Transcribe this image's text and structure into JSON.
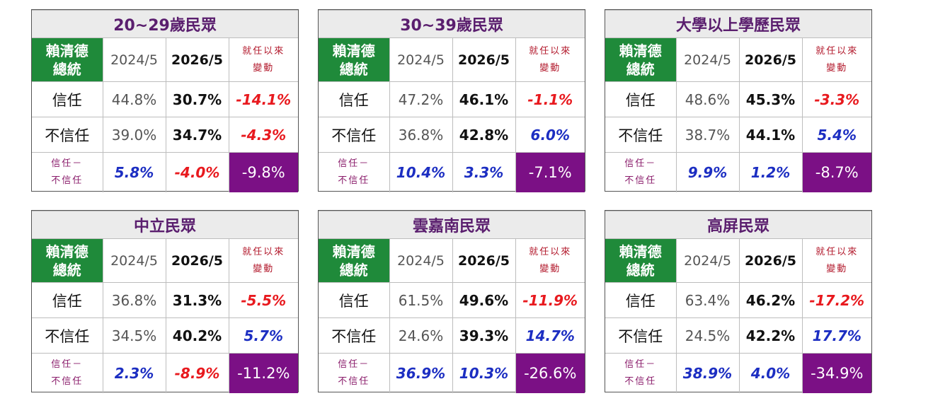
{
  "labels": {
    "name": [
      "賴清德",
      "總統"
    ],
    "old_period": "2024/5",
    "new_period": "2026/5",
    "change": [
      "就任以來",
      "變動"
    ],
    "trust": "信任",
    "distrust": "不信任",
    "net": [
      "信任－",
      "不信任"
    ]
  },
  "colors": {
    "title_text": "#5a1e6e",
    "name_bg": "#1f8a3a",
    "negative": "#e8191e",
    "positive": "#1c2ec2",
    "total_bg": "#7b1085"
  },
  "panels": [
    {
      "title": "20~29歲民眾",
      "trust": {
        "old": "44.8%",
        "new": "30.7%",
        "change": "-14.1%"
      },
      "distrust": {
        "old": "39.0%",
        "new": "34.7%",
        "change": "-4.3%"
      },
      "net": {
        "old": "5.8%",
        "new": "-4.0%",
        "change": "-9.8%"
      }
    },
    {
      "title": "30~39歲民眾",
      "trust": {
        "old": "47.2%",
        "new": "46.1%",
        "change": "-1.1%"
      },
      "distrust": {
        "old": "36.8%",
        "new": "42.8%",
        "change": "6.0%"
      },
      "net": {
        "old": "10.4%",
        "new": "3.3%",
        "change": "-7.1%"
      }
    },
    {
      "title": "大學以上學歷民眾",
      "trust": {
        "old": "48.6%",
        "new": "45.3%",
        "change": "-3.3%"
      },
      "distrust": {
        "old": "38.7%",
        "new": "44.1%",
        "change": "5.4%"
      },
      "net": {
        "old": "9.9%",
        "new": "1.2%",
        "change": "-8.7%"
      }
    },
    {
      "title": "中立民眾",
      "trust": {
        "old": "36.8%",
        "new": "31.3%",
        "change": "-5.5%"
      },
      "distrust": {
        "old": "34.5%",
        "new": "40.2%",
        "change": "5.7%"
      },
      "net": {
        "old": "2.3%",
        "new": "-8.9%",
        "change": "-11.2%"
      }
    },
    {
      "title": "雲嘉南民眾",
      "trust": {
        "old": "61.5%",
        "new": "49.6%",
        "change": "-11.9%"
      },
      "distrust": {
        "old": "24.6%",
        "new": "39.3%",
        "change": "14.7%"
      },
      "net": {
        "old": "36.9%",
        "new": "10.3%",
        "change": "-26.6%"
      }
    },
    {
      "title": "高屏民眾",
      "trust": {
        "old": "63.4%",
        "new": "46.2%",
        "change": "-17.2%"
      },
      "distrust": {
        "old": "24.5%",
        "new": "42.2%",
        "change": "17.7%"
      },
      "net": {
        "old": "38.9%",
        "new": "4.0%",
        "change": "-34.9%"
      }
    }
  ]
}
